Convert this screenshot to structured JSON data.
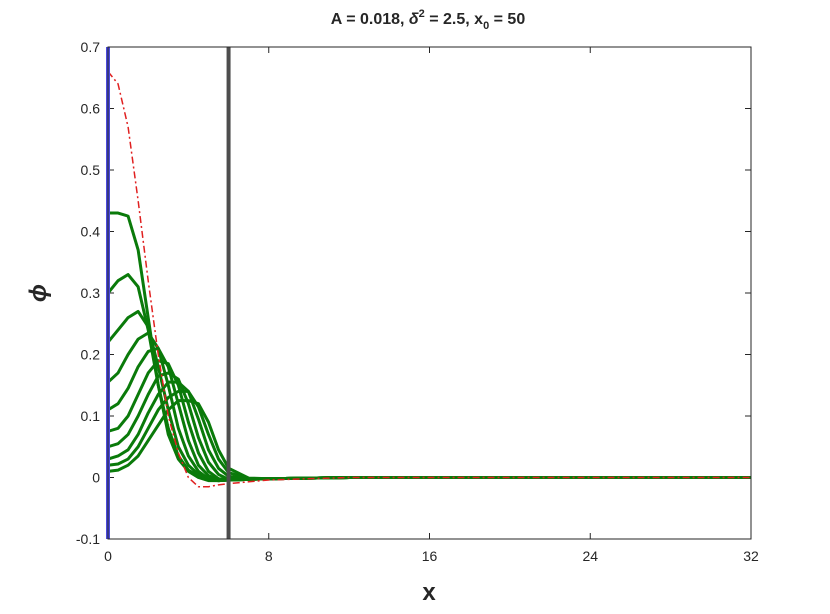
{
  "chart_data": {
    "type": "line",
    "title": [
      "A = 0.018,  ",
      "δ",
      "2",
      " = 2.5,   x",
      "0",
      " = 50"
    ],
    "xlabel": "x",
    "ylabel": "ϕ",
    "x": [
      0,
      0.5,
      1,
      1.5,
      2,
      2.5,
      3,
      3.5,
      4,
      4.5,
      5,
      5.5,
      6,
      7,
      8,
      12,
      16,
      24,
      32
    ],
    "xlim": [
      0,
      32
    ],
    "xticks": [
      0,
      8,
      16,
      24,
      32
    ],
    "ylim": [
      -0.1,
      0.7
    ],
    "yticks": [
      -0.1,
      0,
      0.1,
      0.2,
      0.3,
      0.4,
      0.5,
      0.6,
      0.7
    ],
    "vlines": [
      {
        "x": 0,
        "color": "#4a4adf"
      },
      {
        "x": 6,
        "color": "#4d4d4d"
      }
    ],
    "series": [
      {
        "color": "#0a7a0a",
        "values": [
          0.43,
          0.43,
          0.425,
          0.37,
          0.26,
          0.15,
          0.07,
          0.03,
          0.01,
          0,
          -0.005,
          -0.005,
          -0.004,
          -0.003,
          -0.002,
          0,
          0,
          0,
          0
        ]
      },
      {
        "color": "#0a7a0a",
        "values": [
          0.3,
          0.32,
          0.33,
          0.31,
          0.24,
          0.15,
          0.08,
          0.035,
          0.012,
          0.002,
          -0.004,
          -0.005,
          -0.004,
          -0.003,
          -0.002,
          0,
          0,
          0,
          0
        ]
      },
      {
        "color": "#0a7a0a",
        "values": [
          0.22,
          0.24,
          0.26,
          0.27,
          0.245,
          0.18,
          0.11,
          0.05,
          0.02,
          0.005,
          -0.003,
          -0.005,
          -0.004,
          -0.003,
          -0.002,
          0,
          0,
          0,
          0
        ]
      },
      {
        "color": "#0a7a0a",
        "values": [
          0.155,
          0.17,
          0.2,
          0.225,
          0.235,
          0.21,
          0.15,
          0.08,
          0.035,
          0.01,
          -0.002,
          -0.005,
          -0.004,
          -0.003,
          -0.002,
          0,
          0,
          0,
          0
        ]
      },
      {
        "color": "#0a7a0a",
        "values": [
          0.11,
          0.12,
          0.145,
          0.18,
          0.205,
          0.21,
          0.18,
          0.12,
          0.06,
          0.02,
          0.003,
          -0.004,
          -0.004,
          -0.003,
          -0.002,
          0,
          0,
          0,
          0
        ]
      },
      {
        "color": "#0a7a0a",
        "values": [
          0.075,
          0.08,
          0.1,
          0.135,
          0.17,
          0.19,
          0.185,
          0.15,
          0.09,
          0.04,
          0.01,
          -0.002,
          -0.004,
          -0.003,
          -0.002,
          0,
          0,
          0,
          0
        ]
      },
      {
        "color": "#0a7a0a",
        "values": [
          0.05,
          0.055,
          0.07,
          0.1,
          0.135,
          0.165,
          0.17,
          0.16,
          0.12,
          0.065,
          0.025,
          0.005,
          -0.003,
          -0.003,
          -0.002,
          0,
          0,
          0,
          0
        ]
      },
      {
        "color": "#0a7a0a",
        "values": [
          0.03,
          0.035,
          0.045,
          0.07,
          0.105,
          0.135,
          0.155,
          0.155,
          0.14,
          0.095,
          0.045,
          0.015,
          0.002,
          -0.003,
          -0.002,
          0,
          0,
          0,
          0
        ]
      },
      {
        "color": "#0a7a0a",
        "values": [
          0.02,
          0.022,
          0.03,
          0.05,
          0.08,
          0.11,
          0.13,
          0.14,
          0.14,
          0.115,
          0.07,
          0.03,
          0.008,
          -0.002,
          -0.002,
          0,
          0,
          0,
          0
        ]
      },
      {
        "color": "#0a7a0a",
        "values": [
          0.01,
          0.012,
          0.02,
          0.035,
          0.06,
          0.085,
          0.11,
          0.125,
          0.125,
          0.12,
          0.09,
          0.045,
          0.015,
          -0.001,
          -0.002,
          0,
          0,
          0,
          0
        ]
      },
      {
        "color": "#e02020",
        "dash": true,
        "values": [
          0.66,
          0.64,
          0.57,
          0.45,
          0.32,
          0.2,
          0.1,
          0.04,
          0,
          -0.015,
          -0.015,
          -0.012,
          -0.01,
          -0.007,
          -0.004,
          0,
          0,
          0,
          0
        ]
      }
    ]
  }
}
